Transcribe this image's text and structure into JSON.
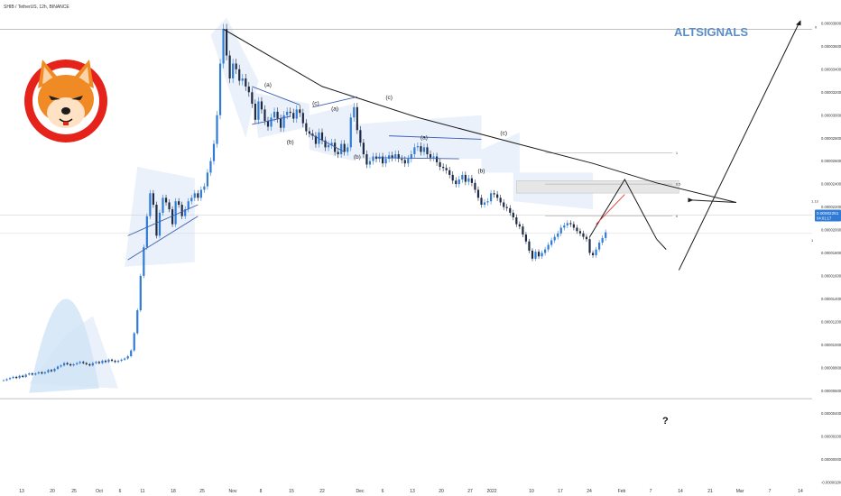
{
  "header": {
    "symbol_line": "SHIB / TetherUS, 12h, BINANCE"
  },
  "watermark": "ALTSIGNALS",
  "logo_name": "shiba-inu-logo",
  "colors": {
    "candle_up": "#2f7bd6",
    "candle_down": "#1f2a44",
    "channel_fill": "#dbe6f6",
    "pattern_fill": "#e3ecf8",
    "trendline": "#1b1b1b",
    "wedge_line": "#3c5fb4",
    "red_line": "#e53935",
    "price_badge": "#2f7bd6",
    "zone_fill": "#e6e6e6",
    "logo_red": "#e5231b",
    "logo_orange": "#f08a24"
  },
  "price_badge": {
    "price": "0.00002251",
    "countdown": "04:01:17"
  },
  "question_mark": "?",
  "chart_data": {
    "type": "line",
    "title": "",
    "xlabel": "",
    "ylabel": "",
    "ylim": [
      -2e-06,
      3.98e-05
    ],
    "x_ticks": [
      "13",
      "20",
      "25",
      "Oct",
      "6",
      "11",
      "18",
      "25",
      "Nov",
      "8",
      "15",
      "22",
      "Dec",
      "6",
      "13",
      "20",
      "27",
      "2022",
      "10",
      "17",
      "24",
      "Feb",
      "7",
      "14",
      "21",
      "Mar",
      "7",
      "14"
    ],
    "y_ticks": [
      "0.00003800",
      "0.00003600",
      "0.00003400",
      "0.00003200",
      "0.00003000",
      "0.00002800",
      "0.00002600",
      "0.00002400",
      "0.00002200",
      "0.00002000",
      "0.00001800",
      "0.00001600",
      "0.00001400",
      "0.00001200",
      "0.00001000",
      "0.00000800",
      "0.00000600",
      "0.00000400",
      "0.00000200",
      "0.00000000",
      "-0.00000200"
    ],
    "y_tick_values": [
      3.8e-05,
      3.6e-05,
      3.4e-05,
      3.2e-05,
      3e-05,
      2.8e-05,
      2.6e-05,
      2.4e-05,
      2.2e-05,
      2e-05,
      1.8e-05,
      1.6e-05,
      1.4e-05,
      1.2e-05,
      1e-05,
      8e-06,
      6e-06,
      4e-06,
      2e-06,
      0,
      -2e-06
    ],
    "series": [
      {
        "type": "price",
        "values": [
          6.9e-06,
          7e-06,
          7.1e-06,
          7.2e-06,
          7.1e-06,
          7.3e-06,
          7.2e-06,
          7.4e-06,
          7.5e-06,
          7.4e-06,
          7.5e-06,
          7.6e-06,
          7.5e-06,
          7.6e-06,
          7.8e-06,
          7.7e-06,
          7.9e-06,
          8.1e-06,
          8.2e-06,
          8.4e-06,
          8.3e-06,
          8.2e-06,
          8.3e-06,
          8.4e-06,
          8.5e-06,
          8.4e-06,
          8.3e-06,
          8.2e-06,
          8.4e-06,
          8.5e-06,
          8.4e-06,
          8.6e-06,
          8.5e-06,
          8.7e-06,
          8.6e-06,
          8.5e-06,
          8.6e-06,
          8.7e-06,
          8.8e-06,
          9e-06,
          9.5e-06,
          1.1e-05,
          1.3e-05,
          1.6e-05,
          1.85e-05,
          2.12e-05,
          2.32e-05,
          2.22e-05,
          1.95e-05,
          2.15e-05,
          2.28e-05,
          2.24e-05,
          2.18e-05,
          2.05e-05,
          2.25e-05,
          2.22e-05,
          2.12e-05,
          2.18e-05,
          2.25e-05,
          2.28e-05,
          2.32e-05,
          2.28e-05,
          2.35e-05,
          2.38e-05,
          2.5e-05,
          2.6e-05,
          2.75e-05,
          3e-05,
          3.45e-05,
          3.75e-05,
          3.52e-05,
          3.32e-05,
          3.45e-05,
          3.4e-05,
          3.3e-05,
          3.32e-05,
          3.25e-05,
          3.2e-05,
          3.1e-05,
          2.96e-05,
          3.12e-05,
          3.05e-05,
          2.95e-05,
          2.9e-05,
          2.98e-05,
          3.03e-05,
          2.97e-05,
          2.89e-05,
          3e-05,
          3.03e-05,
          3.02e-05,
          2.97e-05,
          3.05e-05,
          3.02e-05,
          2.93e-05,
          2.86e-05,
          2.84e-05,
          2.82e-05,
          2.75e-05,
          2.85e-05,
          2.78e-05,
          2.72e-05,
          2.74e-05,
          2.76e-05,
          2.68e-05,
          2.66e-05,
          2.75e-05,
          2.68e-05,
          2.72e-05,
          2.98e-05,
          3.07e-05,
          2.87e-05,
          2.76e-05,
          2.66e-05,
          2.57e-05,
          2.6e-05,
          2.64e-05,
          2.62e-05,
          2.64e-05,
          2.58e-05,
          2.62e-05,
          2.65e-05,
          2.63e-05,
          2.66e-05,
          2.62e-05,
          2.61e-05,
          2.58e-05,
          2.62e-05,
          2.66e-05,
          2.72e-05,
          2.73e-05,
          2.68e-05,
          2.72e-05,
          2.66e-05,
          2.63e-05,
          2.64e-05,
          2.59e-05,
          2.55e-05,
          2.54e-05,
          2.52e-05,
          2.48e-05,
          2.43e-05,
          2.4e-05,
          2.44e-05,
          2.48e-05,
          2.42e-05,
          2.45e-05,
          2.41e-05,
          2.35e-05,
          2.28e-05,
          2.22e-05,
          2.24e-05,
          2.25e-05,
          2.32e-05,
          2.31e-05,
          2.28e-05,
          2.24e-05,
          2.2e-05,
          2.19e-05,
          2.15e-05,
          2.11e-05,
          2.05e-05,
          2.03e-05,
          1.96e-05,
          1.9e-05,
          1.82e-05,
          1.75e-05,
          1.81e-05,
          1.77e-05,
          1.8e-05,
          1.83e-05,
          1.87e-05,
          1.91e-05,
          1.94e-05,
          1.97e-05,
          2.02e-05,
          2.04e-05,
          2.06e-05,
          2.05e-05,
          2.02e-05,
          1.99e-05,
          1.97e-05,
          1.94e-05,
          1.92e-05,
          1.8e-05,
          1.78e-05,
          1.83e-05,
          1.89e-05,
          1.93e-05,
          1.98e-05
        ]
      },
      {
        "type": "arc_trendline",
        "points": [
          [
            69,
            3.75e-05
          ],
          [
            100,
            3.25e-05
          ],
          [
            130,
            2.98e-05
          ],
          [
            160,
            2.76e-05
          ],
          [
            185,
            2.58e-05
          ],
          [
            205,
            2.41e-05
          ],
          [
            230,
            2.24e-05
          ]
        ]
      }
    ],
    "wave_labels": [
      {
        "text": "(a)",
        "bar": 83,
        "y": 3.25e-05
      },
      {
        "text": "(b)",
        "bar": 90,
        "y": 2.75e-05
      },
      {
        "text": "(c)",
        "bar": 98,
        "y": 3.09e-05
      },
      {
        "text": "(a)",
        "bar": 104,
        "y": 3.04e-05
      },
      {
        "text": "(b)",
        "bar": 111,
        "y": 2.62e-05
      },
      {
        "text": "(c)",
        "bar": 121,
        "y": 3.14e-05
      },
      {
        "text": "(a)",
        "bar": 132,
        "y": 2.79e-05
      },
      {
        "text": "(b)",
        "bar": 150,
        "y": 2.5e-05
      },
      {
        "text": "(c)",
        "bar": 157,
        "y": 2.83e-05
      }
    ],
    "fib_levels": [
      {
        "label": "1",
        "price": 2.67e-05
      },
      {
        "label": "0.5",
        "price": 2.4e-05
      },
      {
        "label": "0",
        "price": 2.12e-05
      }
    ],
    "left_axis_marks": [
      {
        "label": "1.13",
        "price": 2.25e-05
      },
      {
        "label": "1",
        "price": 1.91e-05
      }
    ],
    "right_axis_top_label": "0"
  }
}
